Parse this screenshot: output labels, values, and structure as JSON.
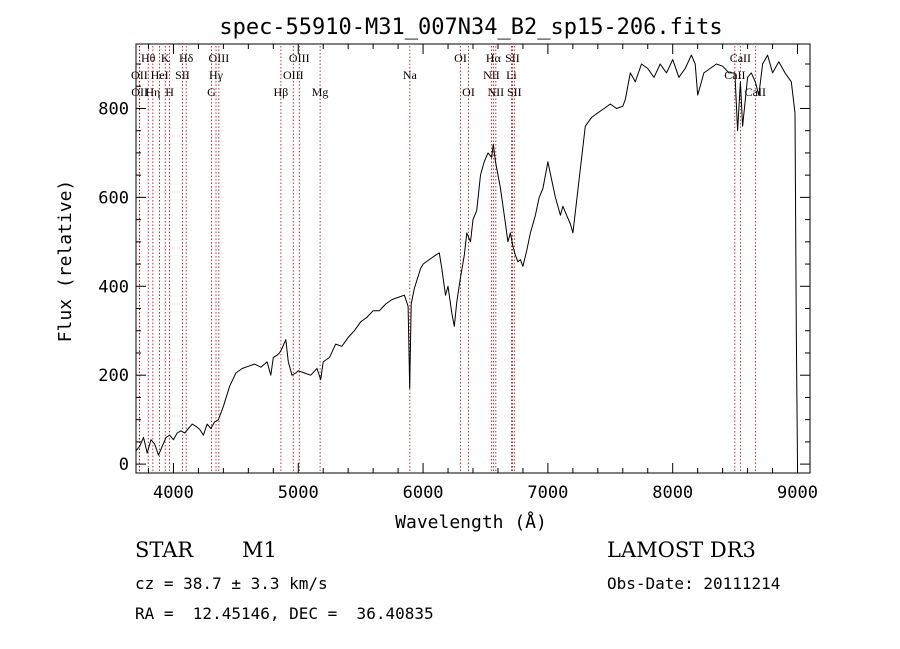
{
  "chart_data": {
    "type": "line",
    "title": "spec-55910-M31_007N34_B2_sp15-206.fits",
    "xlabel": "Wavelength (Å)",
    "ylabel": "Flux (relative)",
    "xlim": [
      3700,
      9100
    ],
    "ylim": [
      -20,
      945
    ],
    "x_ticks": [
      4000,
      5000,
      6000,
      7000,
      8000,
      9000
    ],
    "y_ticks": [
      0,
      200,
      400,
      600,
      800
    ],
    "series": [
      {
        "name": "flux",
        "x": [
          3700,
          3730,
          3760,
          3790,
          3820,
          3850,
          3880,
          3910,
          3940,
          3970,
          4000,
          4030,
          4060,
          4090,
          4120,
          4150,
          4180,
          4210,
          4240,
          4270,
          4300,
          4330,
          4360,
          4400,
          4450,
          4500,
          4550,
          4600,
          4650,
          4700,
          4750,
          4780,
          4800,
          4830,
          4850,
          4870,
          4900,
          4920,
          4950,
          4980,
          5000,
          5050,
          5100,
          5150,
          5180,
          5200,
          5250,
          5300,
          5350,
          5400,
          5450,
          5500,
          5550,
          5600,
          5650,
          5700,
          5750,
          5800,
          5850,
          5880,
          5893,
          5905,
          5930,
          5980,
          6000,
          6050,
          6100,
          6130,
          6150,
          6180,
          6200,
          6230,
          6250,
          6270,
          6300,
          6330,
          6350,
          6380,
          6400,
          6430,
          6460,
          6490,
          6520,
          6550,
          6563,
          6580,
          6600,
          6620,
          6640,
          6660,
          6680,
          6700,
          6720,
          6740,
          6760,
          6780,
          6800,
          6830,
          6860,
          6900,
          6930,
          6960,
          7000,
          7030,
          7060,
          7080,
          7100,
          7120,
          7150,
          7180,
          7200,
          7250,
          7300,
          7350,
          7400,
          7450,
          7500,
          7550,
          7600,
          7620,
          7640,
          7660,
          7680,
          7700,
          7750,
          7800,
          7850,
          7900,
          7950,
          8000,
          8050,
          8100,
          8150,
          8180,
          8200,
          8250,
          8300,
          8350,
          8400,
          8450,
          8498,
          8520,
          8542,
          8560,
          8600,
          8630,
          8662,
          8690,
          8720,
          8760,
          8800,
          8850,
          8900,
          8950,
          8980,
          8990,
          9000
        ],
        "values": [
          30,
          40,
          60,
          25,
          55,
          45,
          20,
          40,
          60,
          65,
          55,
          70,
          75,
          70,
          80,
          90,
          85,
          78,
          65,
          90,
          80,
          95,
          100,
          130,
          175,
          205,
          215,
          220,
          225,
          218,
          230,
          200,
          240,
          245,
          250,
          260,
          280,
          230,
          200,
          205,
          210,
          205,
          200,
          215,
          190,
          230,
          240,
          270,
          265,
          285,
          300,
          320,
          330,
          345,
          345,
          360,
          370,
          375,
          380,
          355,
          170,
          360,
          395,
          440,
          450,
          460,
          470,
          475,
          440,
          380,
          400,
          340,
          310,
          365,
          420,
          470,
          520,
          500,
          550,
          570,
          650,
          680,
          700,
          690,
          720,
          680,
          650,
          620,
          580,
          540,
          500,
          520,
          490,
          470,
          455,
          460,
          445,
          480,
          520,
          560,
          600,
          620,
          680,
          640,
          600,
          580,
          560,
          580,
          560,
          540,
          520,
          640,
          760,
          780,
          790,
          800,
          810,
          800,
          805,
          820,
          850,
          880,
          870,
          860,
          900,
          890,
          870,
          900,
          880,
          910,
          870,
          890,
          920,
          900,
          830,
          880,
          890,
          900,
          895,
          880,
          880,
          750,
          860,
          760,
          870,
          880,
          860,
          830,
          900,
          920,
          880,
          905,
          880,
          860,
          790,
          300,
          0
        ]
      }
    ],
    "lines": [
      {
        "name": "OII",
        "wavelength": 3727,
        "row": 2
      },
      {
        "name": "OII",
        "wavelength": 3729,
        "row": 3
      },
      {
        "name": "Hθ",
        "wavelength": 3798,
        "row": 1
      },
      {
        "name": "Hη",
        "wavelength": 3835,
        "row": 3
      },
      {
        "name": "HeI",
        "wavelength": 3889,
        "row": 2
      },
      {
        "name": "K",
        "wavelength": 3934,
        "row": 1
      },
      {
        "name": "H",
        "wavelength": 3969,
        "row": 3
      },
      {
        "name": "SII",
        "wavelength": 4072,
        "row": 2
      },
      {
        "name": "Hδ",
        "wavelength": 4102,
        "row": 1
      },
      {
        "name": "G",
        "wavelength": 4305,
        "row": 3
      },
      {
        "name": "Hγ",
        "wavelength": 4341,
        "row": 2
      },
      {
        "name": "OIII",
        "wavelength": 4364,
        "row": 1
      },
      {
        "name": "Hβ",
        "wavelength": 4861,
        "row": 3
      },
      {
        "name": "OIII",
        "wavelength": 4960,
        "row": 2
      },
      {
        "name": "OIII",
        "wavelength": 5008,
        "row": 1
      },
      {
        "name": "Mg",
        "wavelength": 5175,
        "row": 3
      },
      {
        "name": "Na",
        "wavelength": 5894,
        "row": 2
      },
      {
        "name": "OI",
        "wavelength": 6300,
        "row": 1
      },
      {
        "name": "OI",
        "wavelength": 6364,
        "row": 3
      },
      {
        "name": "NII",
        "wavelength": 6548,
        "row": 2
      },
      {
        "name": "Hα",
        "wavelength": 6563,
        "row": 1
      },
      {
        "name": "NII",
        "wavelength": 6583,
        "row": 3
      },
      {
        "name": "Li",
        "wavelength": 6708,
        "row": 2
      },
      {
        "name": "SII",
        "wavelength": 6716,
        "row": 1
      },
      {
        "name": "SII",
        "wavelength": 6731,
        "row": 3
      },
      {
        "name": "CaII",
        "wavelength": 8498,
        "row": 2
      },
      {
        "name": "CaII",
        "wavelength": 8542,
        "row": 1
      },
      {
        "name": "CaII",
        "wavelength": 8662,
        "row": 3
      }
    ]
  },
  "info": {
    "class": "STAR",
    "subclass": "M1",
    "survey": "LAMOST DR3",
    "cz": "cz = 38.7 ± 3.3 km/s",
    "obs_date": "Obs-Date: 20111214",
    "radec": "RA =  12.45146, DEC =  36.40835"
  }
}
